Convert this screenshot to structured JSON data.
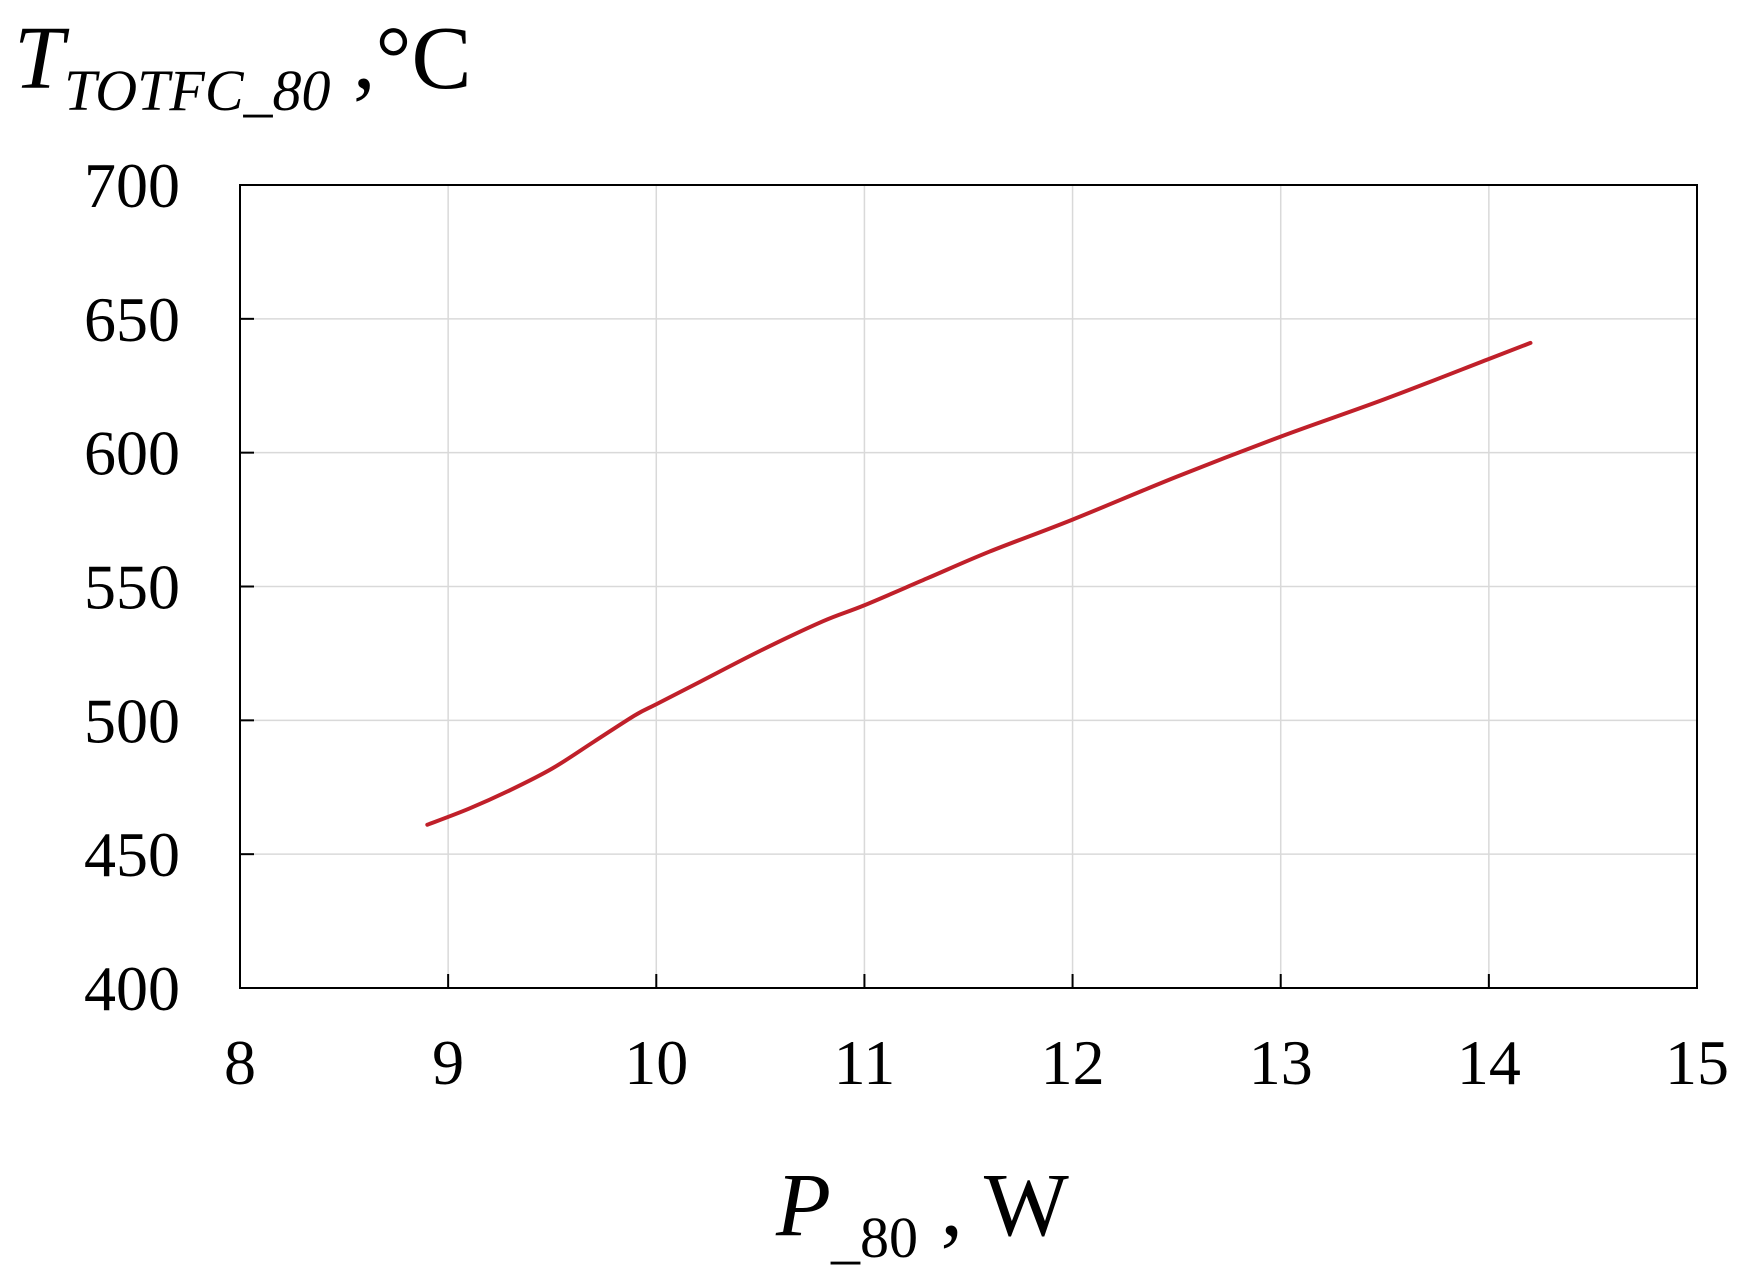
{
  "chart_data": {
    "type": "line",
    "y_label": {
      "symbol": "T",
      "subscript": "TOTFC_80",
      "unit": " ,°C"
    },
    "x_label": {
      "symbol": "P",
      "subscript": "_80",
      "unit": " , W"
    },
    "xlim": [
      8,
      15
    ],
    "ylim": [
      400,
      700
    ],
    "x_ticks": [
      "8",
      "9",
      "10",
      "11",
      "12",
      "13",
      "14",
      "15"
    ],
    "y_ticks": [
      "400",
      "450",
      "500",
      "550",
      "600",
      "650",
      "700"
    ],
    "grid": true,
    "series": [
      {
        "color": "#c0202a",
        "x": [
          8.9,
          9.1,
          9.3,
          9.5,
          9.7,
          9.9,
          10.0,
          10.2,
          10.5,
          10.8,
          11.0,
          11.3,
          11.6,
          12.0,
          12.5,
          13.0,
          13.5,
          14.0,
          14.2
        ],
        "y": [
          461,
          467,
          474,
          482,
          492,
          502,
          506,
          514,
          526,
          537,
          543,
          553,
          563,
          575,
          591,
          606,
          620,
          635,
          641
        ]
      }
    ]
  },
  "colors": {
    "line": "#c0202a",
    "grid": "#d9d9d9",
    "axis": "#000000"
  }
}
